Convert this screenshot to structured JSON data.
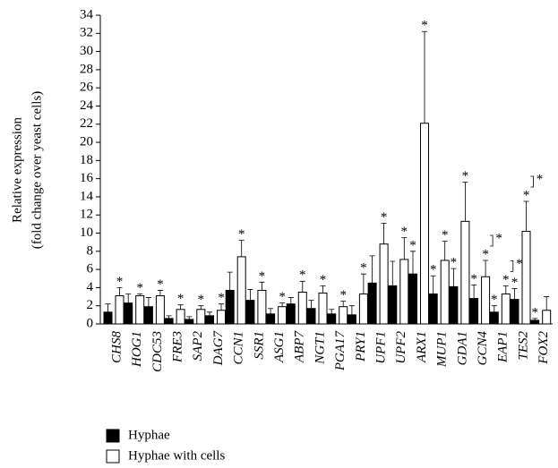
{
  "chart_data": {
    "type": "bar",
    "y_label_lines": [
      "Relative expression",
      "(fold change over yeast cells)"
    ],
    "categories": [
      "CHS8",
      "HOG1",
      "CDC53",
      "FRE3",
      "SAP2",
      "DAG7",
      "CCN1",
      "SSR1",
      "ASG1",
      "ABP7",
      "NGT1",
      "PGA17",
      "PRY1",
      "UPF1",
      "UPF2",
      "ARX1",
      "MUP1",
      "GDA1",
      "GCN4",
      "EAP1",
      "TES2",
      "FOX2"
    ],
    "series": [
      {
        "name": "Hyphae",
        "color": "#000000",
        "values": [
          1.3,
          2.3,
          1.9,
          0.6,
          0.5,
          0.9,
          3.7,
          2.6,
          1.1,
          2.2,
          1.7,
          1.1,
          1.0,
          4.5,
          4.2,
          5.5,
          3.3,
          4.1,
          2.8,
          1.3,
          2.7,
          0.4
        ],
        "errors": [
          0.9,
          1.0,
          1.0,
          0.3,
          0.3,
          0.4,
          2.0,
          1.2,
          0.6,
          0.7,
          0.9,
          0.5,
          1.0,
          3.0,
          2.7,
          2.5,
          2.0,
          2.0,
          1.5,
          0.7,
          1.2,
          0.2
        ],
        "significance": [
          null,
          null,
          null,
          null,
          null,
          null,
          null,
          null,
          null,
          null,
          null,
          null,
          null,
          null,
          null,
          "*",
          "*",
          "*",
          "*",
          "*",
          "*",
          "*"
        ]
      },
      {
        "name": "Hyphae with cells",
        "color": "#ffffff",
        "values": [
          3.1,
          3.1,
          3.1,
          1.6,
          1.6,
          1.5,
          7.4,
          3.7,
          1.9,
          3.5,
          3.4,
          1.9,
          3.3,
          8.8,
          7.1,
          22.1,
          7.0,
          11.3,
          5.2,
          3.3,
          10.2,
          1.5
        ],
        "errors": [
          0.9,
          0.2,
          0.6,
          0.5,
          0.4,
          0.7,
          1.8,
          0.9,
          0.4,
          1.2,
          0.8,
          0.6,
          2.2,
          2.3,
          2.4,
          10.1,
          2.1,
          4.3,
          1.8,
          0.9,
          3.3,
          1.5
        ],
        "significance": [
          "*",
          "*",
          "*",
          "*",
          "*",
          "*",
          "*",
          "*",
          "*",
          "*",
          "*",
          "*",
          "*",
          "*",
          "*",
          "*",
          "*",
          "*",
          "*",
          "*",
          "*",
          null
        ]
      }
    ],
    "bracket_labels": [
      null,
      null,
      null,
      null,
      null,
      null,
      null,
      null,
      null,
      null,
      null,
      null,
      null,
      null,
      null,
      null,
      null,
      null,
      "*",
      "*",
      "*",
      null
    ],
    "ylim": [
      0,
      34
    ],
    "yticks": [
      0,
      2,
      4,
      6,
      8,
      10,
      12,
      14,
      16,
      18,
      20,
      22,
      24,
      26,
      28,
      30,
      32,
      34
    ]
  }
}
